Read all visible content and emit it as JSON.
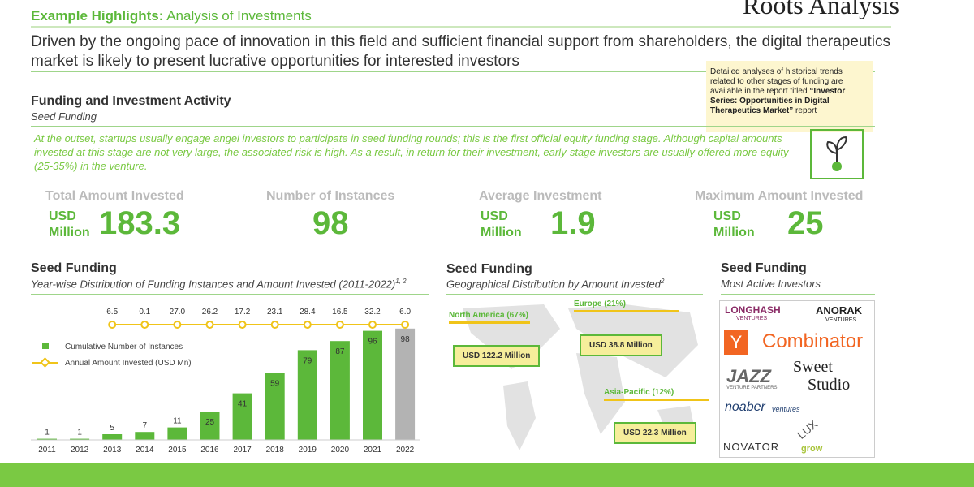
{
  "brand": "Roots Analysis",
  "header": {
    "title": "Example Highlights:",
    "subtitle": "Analysis of Investments",
    "headline": "Driven by the ongoing pace of innovation in this field and sufficient financial support from shareholders, the digital therapeutics market is likely to present lucrative opportunities for interested investors"
  },
  "note": {
    "text": "Detailed analyses of historical trends related to other stages of funding are available in the report titled",
    "report": "“Investor Series: Opportunities in Digital Therapeutics Market”",
    "tail": "report"
  },
  "section": {
    "title": "Funding and Investment Activity",
    "subtitle": "Seed Funding",
    "paragraph": "At the outset, startups usually engage angel investors to participate in seed funding rounds; this is the first official equity funding stage. Although capital amounts invested at this stage are not very large, the associated risk is high. As a result, in return for their investment, early-stage investors are usually offered more equity (25-35%) in the venture."
  },
  "kpis": [
    {
      "label": "Total Amount Invested",
      "unit": "USD Million",
      "value": "183.3"
    },
    {
      "label": "Number of Instances",
      "value": "98"
    },
    {
      "label": "Average Investment",
      "unit": "USD Million",
      "value": "1.9"
    },
    {
      "label": "Maximum Amount Invested",
      "unit": "USD Million",
      "value": "25"
    }
  ],
  "chart_data": {
    "type": "bar",
    "title": "Seed Funding",
    "subtitle": "Year-wise Distribution of Funding Instances and Amount Invested (2011-2022)",
    "footnote": "1, 2",
    "categories": [
      "2011",
      "2012",
      "2013",
      "2014",
      "2015",
      "2016",
      "2017",
      "2018",
      "2019",
      "2020",
      "2021",
      "2022"
    ],
    "ylim": [
      0,
      100
    ],
    "series": [
      {
        "name": "Cumulative Number of Instances",
        "color": "#5cb83a",
        "highlight_color": "#b3b3b3",
        "values": [
          1,
          1,
          5,
          7,
          11,
          25,
          41,
          59,
          79,
          87,
          96,
          98
        ]
      },
      {
        "name": "Annual Amount Invested (USD Mn)",
        "color": "#f0c419",
        "values": [
          null,
          null,
          6.5,
          0.1,
          27,
          26.2,
          17.2,
          23.1,
          28.4,
          16.5,
          32.2,
          6
        ],
        "value_labels": [
          null,
          null,
          "6.5",
          "0.1",
          "27.0",
          "26.2",
          "17.2",
          "23.1",
          "28.4",
          "16.5",
          "32.2",
          "6.0"
        ]
      }
    ]
  },
  "geo": {
    "title": "Seed Funding",
    "subtitle": "Geographical Distribution by Amount Invested",
    "footnote": "2",
    "regions": [
      {
        "name": "North America (67%)",
        "amount": "USD 122.2 Million"
      },
      {
        "name": "Europe (21%)",
        "amount": "USD 38.8 Million"
      },
      {
        "name": "Asia-Pacific (12%)",
        "amount": "USD 22.3 Million"
      }
    ]
  },
  "investors": {
    "title": "Seed Funding",
    "subtitle": "Most Active Investors",
    "logos": [
      "LONGHASH",
      "VENTURES",
      "ANORAK",
      "VENTURES",
      "Y",
      "Combinator",
      "JAZZ",
      "VENTURE PARTNERS",
      "Sweet",
      "Studio",
      "noaber",
      "ventures",
      "NOVATOR",
      "LUX",
      "grow"
    ]
  }
}
